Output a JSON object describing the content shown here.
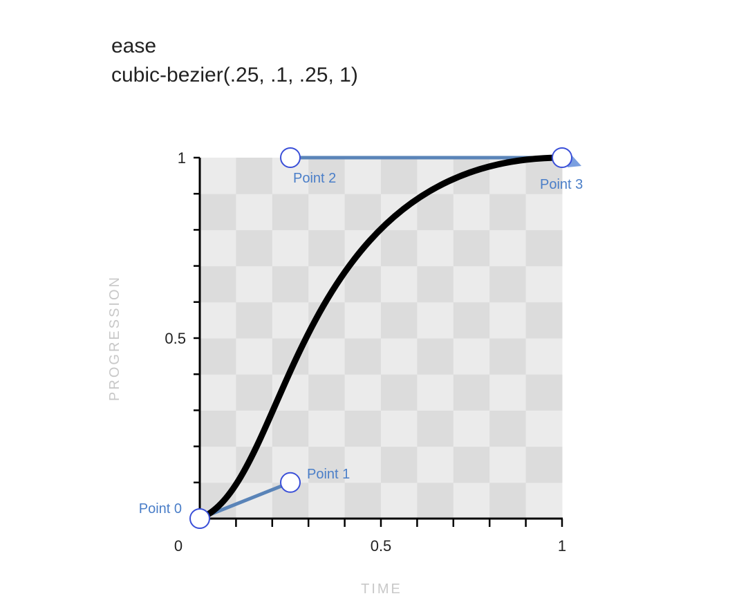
{
  "header": {
    "name": "ease",
    "formula": "cubic-bezier(.25, .1, .25, 1)"
  },
  "chart_data": {
    "type": "line",
    "bezier": [
      0.25,
      0.1,
      0.25,
      1
    ],
    "points": [
      {
        "name": "Point 0",
        "x": 0,
        "y": 0
      },
      {
        "name": "Point 1",
        "x": 0.25,
        "y": 0.1
      },
      {
        "name": "Point 2",
        "x": 0.25,
        "y": 1
      },
      {
        "name": "Point 3",
        "x": 1,
        "y": 1
      }
    ],
    "xlabel": "TIME",
    "ylabel": "PROGRESSION",
    "xlim": [
      0,
      1
    ],
    "ylim": [
      0,
      1
    ],
    "x_tick_labels": [
      {
        "value": 0,
        "label": "0"
      },
      {
        "value": 0.5,
        "label": "0.5"
      },
      {
        "value": 1,
        "label": "1"
      }
    ],
    "y_tick_labels": [
      {
        "value": 0.5,
        "label": "0.5"
      },
      {
        "value": 1,
        "label": "1"
      }
    ],
    "minor_tick_step": 0.1,
    "grid": true,
    "colors": {
      "curve": "#000000",
      "handle": "#5a84b8",
      "point_stroke": "#3a4fd8",
      "point_label": "#4a7ec8",
      "grid_dark": "#dcdcdc",
      "grid_light": "#ebebeb"
    }
  }
}
